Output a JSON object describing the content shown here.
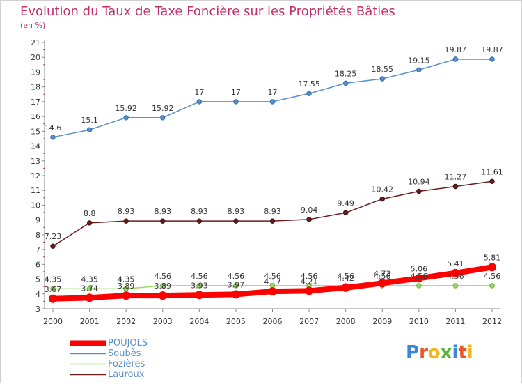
{
  "title": "Evolution du Taux de Taxe Foncière sur les Propriétés Bâties",
  "subtitle": "(en %)",
  "logo": {
    "text": "Proxiti",
    "letters": [
      {
        "ch": "P",
        "color": "#3a86d8"
      },
      {
        "ch": "r",
        "color": "#e8562a"
      },
      {
        "ch": "o",
        "color": "#f2b51f"
      },
      {
        "ch": "x",
        "color": "#5bb53c"
      },
      {
        "ch": "i",
        "color": "#3a86d8"
      },
      {
        "ch": "t",
        "color": "#e8562a"
      },
      {
        "ch": "i",
        "color": "#f2b51f"
      }
    ]
  },
  "chart_data": {
    "type": "line",
    "title": "Evolution du Taux de Taxe Foncière sur les Propriétés Bâties",
    "ylabel": "(en %)",
    "x": [
      "2000",
      "2001",
      "2002",
      "2003",
      "2004",
      "2005",
      "2006",
      "2007",
      "2008",
      "2009",
      "2010",
      "2011",
      "2012"
    ],
    "ylim": [
      3,
      21
    ],
    "yticks": [
      "3",
      "4",
      "5",
      "6",
      "7",
      "8",
      "9",
      "10",
      "11",
      "12",
      "13",
      "14",
      "15",
      "16",
      "17",
      "18",
      "19",
      "20",
      "21"
    ],
    "grid": false,
    "legend_position": "bottom-left",
    "series": [
      {
        "name": "POUJOLS",
        "color": "#ff0000",
        "values": [
          3.67,
          3.74,
          3.89,
          3.89,
          3.93,
          3.97,
          4.17,
          4.21,
          4.42,
          4.73,
          5.06,
          5.41,
          5.81
        ],
        "labels": [
          "3.67",
          "3.74",
          "3.89",
          "3.89",
          "3.93",
          "3.97",
          "4.17",
          "4.21",
          "4.42",
          "4.73",
          "5.06",
          "5.41",
          "5.81"
        ]
      },
      {
        "name": "Soubès",
        "color": "#5a8fcc",
        "values": [
          14.6,
          15.1,
          15.92,
          15.92,
          17,
          17,
          17,
          17.55,
          18.25,
          18.55,
          19.15,
          19.87,
          19.87
        ],
        "labels": [
          "14.6",
          "15.1",
          "15.92",
          "15.92",
          "17",
          "17",
          "17",
          "17.55",
          "18.25",
          "18.55",
          "19.15",
          "19.87",
          "19.87"
        ]
      },
      {
        "name": "Fozières",
        "color": "#99dd66",
        "values": [
          4.35,
          4.35,
          4.35,
          4.56,
          4.56,
          4.56,
          4.56,
          4.56,
          4.56,
          4.56,
          4.56,
          4.56,
          4.56
        ],
        "labels": [
          "4.35",
          "4.35",
          "4.35",
          "4.56",
          "4.56",
          "4.56",
          "4.56",
          "4.56",
          "4.56",
          "4.56",
          "4.56",
          "4.56",
          "4.56"
        ]
      },
      {
        "name": "Lauroux",
        "color": "#6b1c1c",
        "values": [
          7.23,
          8.8,
          8.93,
          8.93,
          8.93,
          8.93,
          8.93,
          9.04,
          9.49,
          10.42,
          10.94,
          11.27,
          11.61
        ],
        "labels": [
          "7.23",
          "8.8",
          "8.93",
          "8.93",
          "8.93",
          "8.93",
          "8.93",
          "9.04",
          "9.49",
          "10.42",
          "10.94",
          "11.27",
          "11.61"
        ]
      }
    ]
  }
}
